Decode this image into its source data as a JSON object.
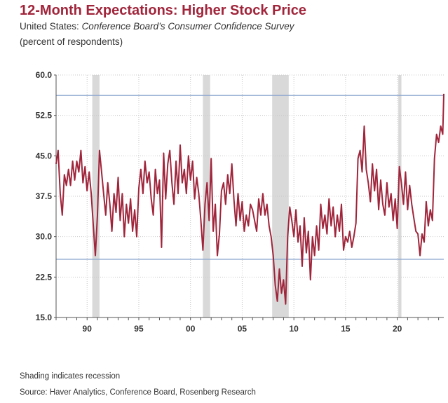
{
  "header": {
    "title": "12-Month Expectations: Higher Stock Price",
    "subtitle_prefix": "United States: ",
    "subtitle_italic": "Conference Board’s Consumer Confidence Survey",
    "units": "(percent of respondents)"
  },
  "footer": {
    "note": "Shading indicates recession",
    "source": "Source: Haver Analytics, Conference Board, Rosenberg Research"
  },
  "colors": {
    "line": "#a0253b",
    "reference_line": "#8ea8cf",
    "recession": "#d9d9d9",
    "grid": "#c9c9c9",
    "title": "#a0253b"
  },
  "chart_data": {
    "type": "line",
    "ylim": [
      15.0,
      60.0
    ],
    "yticks": [
      "60.0",
      "52.5",
      "45.0",
      "37.5",
      "30.0",
      "22.5",
      "15.0"
    ],
    "ytick_values": [
      60.0,
      52.5,
      45.0,
      37.5,
      30.0,
      22.5,
      15.0
    ],
    "xlim": [
      1987.0,
      2024.5
    ],
    "xticks": [
      "90",
      "95",
      "00",
      "05",
      "10",
      "15",
      "20"
    ],
    "xtick_values": [
      1990,
      1995,
      2000,
      2005,
      2010,
      2015,
      2020
    ],
    "grid": true,
    "reference_lines": [
      56.2,
      25.8
    ],
    "recessions": [
      [
        1990.5,
        1991.2
      ],
      [
        2001.2,
        2001.9
      ],
      [
        2007.9,
        2009.5
      ],
      [
        2020.1,
        2020.4
      ]
    ],
    "series": [
      {
        "x": [
          1987.0,
          1987.2,
          1987.4,
          1987.6,
          1987.8,
          1988.0,
          1988.2,
          1988.4,
          1988.6,
          1988.8,
          1989.0,
          1989.2,
          1989.4,
          1989.6,
          1989.8,
          1990.0,
          1990.2,
          1990.4,
          1990.6,
          1990.8,
          1991.0,
          1991.2,
          1991.4,
          1991.6,
          1991.8,
          1992.0,
          1992.2,
          1992.4,
          1992.6,
          1992.8,
          1993.0,
          1993.2,
          1993.4,
          1993.6,
          1993.8,
          1994.0,
          1994.2,
          1994.4,
          1994.6,
          1994.8,
          1995.0,
          1995.2,
          1995.4,
          1995.6,
          1995.8,
          1996.0,
          1996.2,
          1996.4,
          1996.6,
          1996.8,
          1997.0,
          1997.2,
          1997.4,
          1997.6,
          1997.8,
          1998.0,
          1998.2,
          1998.4,
          1998.6,
          1998.8,
          1999.0,
          1999.2,
          1999.4,
          1999.6,
          1999.8,
          2000.0,
          2000.2,
          2000.4,
          2000.6,
          2000.8,
          2001.0,
          2001.2,
          2001.4,
          2001.6,
          2001.8,
          2002.0,
          2002.2,
          2002.4,
          2002.6,
          2002.8,
          2003.0,
          2003.2,
          2003.4,
          2003.6,
          2003.8,
          2004.0,
          2004.2,
          2004.4,
          2004.6,
          2004.8,
          2005.0,
          2005.2,
          2005.4,
          2005.6,
          2005.8,
          2006.0,
          2006.2,
          2006.4,
          2006.6,
          2006.8,
          2007.0,
          2007.2,
          2007.4,
          2007.6,
          2007.8,
          2008.0,
          2008.2,
          2008.4,
          2008.6,
          2008.8,
          2009.0,
          2009.2,
          2009.4,
          2009.6,
          2009.8,
          2010.0,
          2010.2,
          2010.4,
          2010.6,
          2010.8,
          2011.0,
          2011.2,
          2011.4,
          2011.6,
          2011.8,
          2012.0,
          2012.2,
          2012.4,
          2012.6,
          2012.8,
          2013.0,
          2013.2,
          2013.4,
          2013.6,
          2013.8,
          2014.0,
          2014.2,
          2014.4,
          2014.6,
          2014.8,
          2015.0,
          2015.2,
          2015.4,
          2015.6,
          2015.8,
          2016.0,
          2016.2,
          2016.4,
          2016.6,
          2016.8,
          2017.0,
          2017.2,
          2017.4,
          2017.6,
          2017.8,
          2018.0,
          2018.2,
          2018.4,
          2018.6,
          2018.8,
          2019.0,
          2019.2,
          2019.4,
          2019.6,
          2019.8,
          2020.0,
          2020.2,
          2020.4,
          2020.6,
          2020.8,
          2021.0,
          2021.2,
          2021.4,
          2021.6,
          2021.8,
          2022.0,
          2022.2,
          2022.4,
          2022.6,
          2022.8,
          2023.0,
          2023.2,
          2023.4,
          2023.6,
          2023.8,
          2024.0,
          2024.2,
          2024.4,
          2024.5
        ],
        "y": [
          43.5,
          46.0,
          38.0,
          34.0,
          41.5,
          39.5,
          42.5,
          39.5,
          44.0,
          40.5,
          44.0,
          42.0,
          46.0,
          40.0,
          43.0,
          38.5,
          42.0,
          38.0,
          32.0,
          26.5,
          34.0,
          46.0,
          42.0,
          38.0,
          34.0,
          40.0,
          36.0,
          31.0,
          38.0,
          34.5,
          41.0,
          33.0,
          38.0,
          30.0,
          36.0,
          32.5,
          37.0,
          31.0,
          35.0,
          30.0,
          39.0,
          42.5,
          38.0,
          44.0,
          40.0,
          42.0,
          37.0,
          34.0,
          42.5,
          38.0,
          40.5,
          28.0,
          45.5,
          37.0,
          43.5,
          46.0,
          40.0,
          36.0,
          44.0,
          38.0,
          47.0,
          40.0,
          42.5,
          38.0,
          45.0,
          40.5,
          44.0,
          37.0,
          41.0,
          38.0,
          33.0,
          27.5,
          36.0,
          40.0,
          33.0,
          44.5,
          31.0,
          36.0,
          26.5,
          30.5,
          38.5,
          40.0,
          36.0,
          41.5,
          38.0,
          43.5,
          37.0,
          32.0,
          38.0,
          33.0,
          36.5,
          31.0,
          34.0,
          32.0,
          36.0,
          35.0,
          33.0,
          31.0,
          37.0,
          34.0,
          38.0,
          34.0,
          36.0,
          32.0,
          30.0,
          26.5,
          21.0,
          18.0,
          24.0,
          19.5,
          22.0,
          17.5,
          30.0,
          35.5,
          33.0,
          30.0,
          35.0,
          29.0,
          32.0,
          24.5,
          33.5,
          27.0,
          31.0,
          22.0,
          30.0,
          26.5,
          32.0,
          27.5,
          36.0,
          31.5,
          34.0,
          30.5,
          37.0,
          32.0,
          35.5,
          30.0,
          34.0,
          31.0,
          36.0,
          27.5,
          30.0,
          29.0,
          31.0,
          28.0,
          30.0,
          32.5,
          44.5,
          46.0,
          42.0,
          50.5,
          42.5,
          40.0,
          36.5,
          43.5,
          38.5,
          42.5,
          35.0,
          40.5,
          36.0,
          34.0,
          40.0,
          35.5,
          38.0,
          33.0,
          37.0,
          31.5,
          43.0,
          40.0,
          36.0,
          42.0,
          35.0,
          39.5,
          36.0,
          33.5,
          31.0,
          30.5,
          26.5,
          30.5,
          29.0,
          36.5,
          32.0,
          35.0,
          33.0,
          44.5,
          49.0,
          47.5,
          50.5,
          49.0,
          56.5
        ]
      }
    ]
  }
}
